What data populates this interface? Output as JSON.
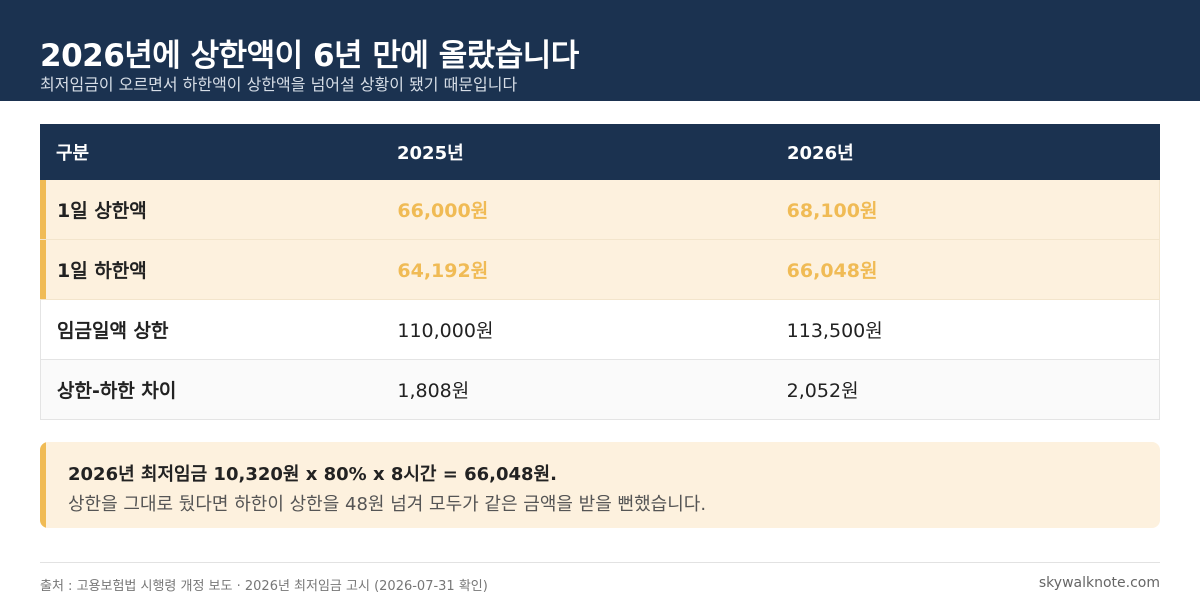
{
  "header": {
    "title": "2026년에 상한액이 6년 만에 올랐습니다",
    "subtitle": "최저임금이 오르면서 하한액이 상한액을 넘어설 상황이 됐기 때문입니다"
  },
  "table": {
    "columns": [
      "구분",
      "2025년",
      "2026년"
    ],
    "rows": [
      {
        "label": "1일 상한액",
        "y2025": "66,000원",
        "y2026": "68,100원"
      },
      {
        "label": "1일 하한액",
        "y2025": "64,192원",
        "y2026": "66,048원"
      },
      {
        "label": "임금일액 상한",
        "y2025": "110,000원",
        "y2026": "113,500원"
      },
      {
        "label": "상한-하한 차이",
        "y2025": "1,808원",
        "y2026": "2,052원"
      }
    ]
  },
  "note": {
    "line1": "2026년 최저임금 10,320원 x 80% x 8시간 = 66,048원.",
    "line2": "상한을 그대로 뒀다면 하한이 상한을 48원 넘겨 모두가 같은 금액을 받을 뻔했습니다."
  },
  "footer": {
    "source": "출처 : 고용보험법 시행령 개정 보도 · 2026년 최저임금 고시 (2026-07-31 확인)",
    "brand": "skywalknote.com"
  },
  "colors": {
    "navy": "#1b3250",
    "accent": "#f0bb55",
    "highlight_bg": "#fdf1de"
  }
}
